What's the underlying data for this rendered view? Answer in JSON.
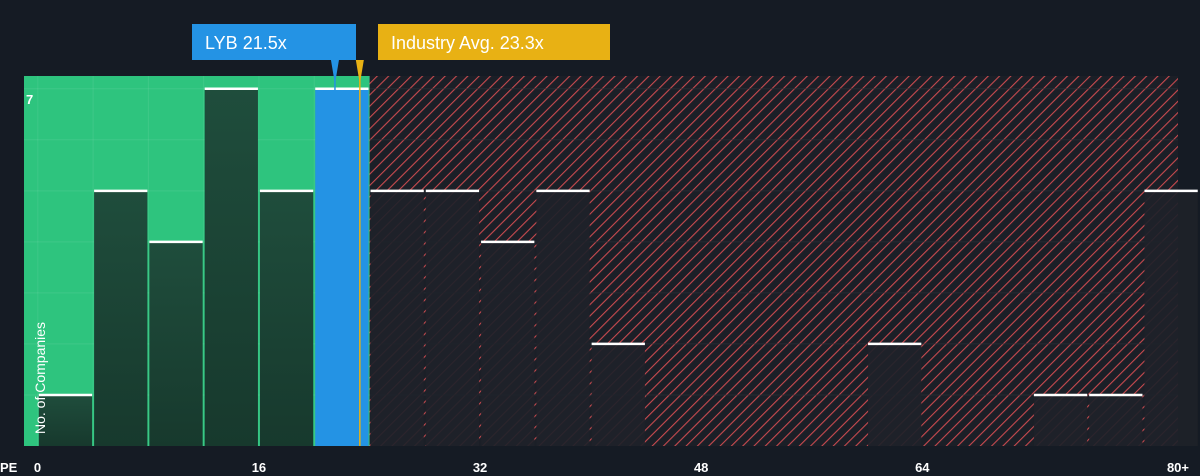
{
  "chart_data": {
    "type": "bar",
    "title": "",
    "xlabel": "PE",
    "ylabel": "No. of Companies",
    "bin_width": 4,
    "x_ticks": [
      {
        "value": 0,
        "label": "0"
      },
      {
        "value": 16,
        "label": "16"
      },
      {
        "value": 32,
        "label": "32"
      },
      {
        "value": 48,
        "label": "48"
      },
      {
        "value": 64,
        "label": "64"
      },
      {
        "value": 80,
        "label": "80+"
      }
    ],
    "y_ticks": [
      {
        "value": 7,
        "label": "7"
      }
    ],
    "xlim": [
      -1,
      82.5
    ],
    "ylim": [
      0,
      7.25
    ],
    "bins": [
      {
        "start": 0,
        "count": 1
      },
      {
        "start": 4,
        "count": 5
      },
      {
        "start": 8,
        "count": 4
      },
      {
        "start": 12,
        "count": 7
      },
      {
        "start": 16,
        "count": 5
      },
      {
        "start": 20,
        "count": 7,
        "highlight": true
      },
      {
        "start": 24,
        "count": 5
      },
      {
        "start": 28,
        "count": 5
      },
      {
        "start": 32,
        "count": 4
      },
      {
        "start": 36,
        "count": 5
      },
      {
        "start": 40,
        "count": 2
      },
      {
        "start": 60,
        "count": 2
      },
      {
        "start": 72,
        "count": 1
      },
      {
        "start": 76,
        "count": 1
      },
      {
        "start": 80,
        "count": 5
      }
    ],
    "company": {
      "label": "LYB 21.5x",
      "value": 21.5
    },
    "industry": {
      "label": "Industry Avg. 23.3x",
      "value": 23.3
    },
    "colors": {
      "background": "#151b24",
      "below_zone": "#2ec47e",
      "below_bar": "#1d4a3a",
      "above_bar": "#1e2229",
      "above_hatch": "#c94a4f",
      "highlight_bar": "#2493e4",
      "company_callout": "#2493e4",
      "industry_callout": "#e8b114",
      "bar_top_line": "#ffffff",
      "grid": "#2b3038"
    }
  }
}
